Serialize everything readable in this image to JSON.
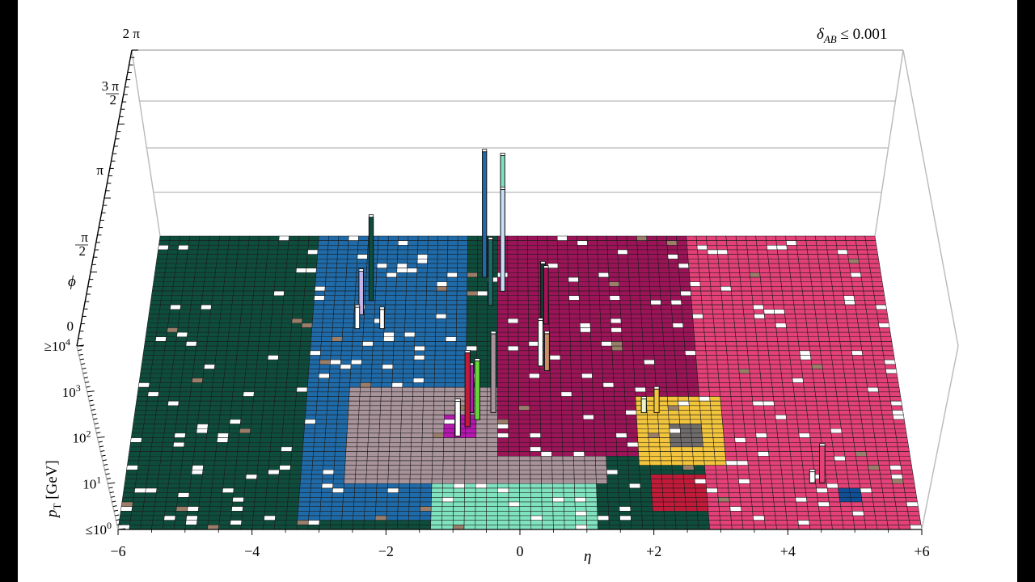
{
  "chart_data": {
    "type": "heatmap",
    "subtype": "3d-lego-calorimeter",
    "title": "",
    "annotation": {
      "main": "δ",
      "sub": "AB",
      "tail": " ≤ 0.001"
    },
    "x_axis": {
      "label": "η",
      "range": [
        -6,
        6
      ],
      "tick_labels": [
        "−6",
        "−4",
        "−2",
        "0",
        "+2",
        "+4",
        "+6"
      ],
      "tick_values": [
        -6,
        -4,
        -2,
        0,
        2,
        4,
        6
      ]
    },
    "phi_axis": {
      "label": "ϕ",
      "range": [
        0,
        6.2832
      ],
      "tick_labels": [
        {
          "kind": "text",
          "text": "0"
        },
        {
          "kind": "frac",
          "num": "π",
          "den": "2"
        },
        {
          "kind": "text",
          "text": "π"
        },
        {
          "kind": "frac",
          "num": "3 π",
          "den": "2"
        },
        {
          "kind": "text",
          "text": "2 π"
        }
      ],
      "tick_values": [
        0,
        1.5708,
        3.1416,
        4.7124,
        6.2832
      ]
    },
    "pt_axis": {
      "label": "p",
      "label_sub": "T",
      "label_unit": " [GeV]",
      "scale": "log",
      "range_exponent": [
        0,
        4
      ],
      "tick_labels": [
        {
          "prefix": "≤10",
          "exp": "0"
        },
        {
          "prefix": "10",
          "exp": "1"
        },
        {
          "prefix": "10",
          "exp": "2"
        },
        {
          "prefix": "10",
          "exp": "3"
        },
        {
          "prefix": "≥10",
          "exp": "4"
        }
      ],
      "tick_exponents": [
        0,
        1,
        2,
        3,
        4
      ]
    },
    "grid": {
      "eta_cells": 72,
      "phi_cells": 64
    },
    "regions": [
      {
        "name": "dark-green-left",
        "color": "#0e4d3c",
        "eta_range": [
          -6,
          -2.2
        ],
        "phi_range": [
          0,
          6.2832
        ]
      },
      {
        "name": "blue",
        "color": "#1f6aa8",
        "eta_range": [
          -3.4,
          -0.8
        ],
        "phi_range": [
          0.2,
          6.2832
        ]
      },
      {
        "name": "grey-center",
        "color": "#a8939b",
        "eta_range": [
          -2.6,
          1.3
        ],
        "phi_range": [
          1.0,
          3.0
        ]
      },
      {
        "name": "aqua-bottom",
        "color": "#7fe3c0",
        "eta_range": [
          -1.3,
          1.2
        ],
        "phi_range": [
          0,
          1.0
        ]
      },
      {
        "name": "aqua-top",
        "color": "#7fe3c0",
        "eta_range": [
          0,
          1.3
        ],
        "phi_range": [
          5.5,
          6.2832
        ]
      },
      {
        "name": "maroon",
        "color": "#9c1458",
        "eta_range": [
          -0.4,
          2.8
        ],
        "phi_range": [
          1.6,
          6.2832
        ]
      },
      {
        "name": "pink-right",
        "color": "#e34177",
        "eta_range": [
          2.8,
          6
        ],
        "phi_range": [
          0,
          6.2832
        ]
      },
      {
        "name": "yellow-ring",
        "color": "#f2c53d",
        "eta_range": [
          1.8,
          3.2
        ],
        "phi_range": [
          1.4,
          2.8
        ]
      },
      {
        "name": "grey-in-yellow",
        "color": "#6f6b6b",
        "eta_range": [
          2.3,
          2.8
        ],
        "phi_range": [
          1.8,
          2.3
        ]
      },
      {
        "name": "crimson",
        "color": "#c21b3a",
        "eta_range": [
          2.0,
          2.8
        ],
        "phi_range": [
          0.4,
          1.2
        ]
      },
      {
        "name": "magenta-blob",
        "color": "#b517b0",
        "eta_range": [
          -1.1,
          -0.7
        ],
        "phi_range": [
          2.0,
          2.5
        ]
      },
      {
        "name": "navy-blob",
        "color": "#0f4f98",
        "eta_range": [
          4.8,
          5.2
        ],
        "phi_range": [
          0.6,
          0.9
        ]
      }
    ],
    "towers": [
      {
        "eta": -2.4,
        "phi": 4.9,
        "color": "#0e4d3c",
        "pt_log": 1.9
      },
      {
        "eta": -2.55,
        "phi": 4.6,
        "color": "#c8b4e6",
        "pt_log": 1.0
      },
      {
        "eta": -2.6,
        "phi": 4.3,
        "color": "#ffffff",
        "pt_log": 0.5
      },
      {
        "eta": -2.2,
        "phi": 4.3,
        "color": "#ffffff",
        "pt_log": 0.45
      },
      {
        "eta": -0.55,
        "phi": 5.4,
        "color": "#1f6aa8",
        "pt_log": 2.8
      },
      {
        "eta": -0.25,
        "phi": 5.5,
        "color": "#7fe3c0",
        "pt_log": 2.6
      },
      {
        "eta": -0.25,
        "phi": 5.1,
        "color": "#c6def6",
        "pt_log": 2.3
      },
      {
        "eta": -0.45,
        "phi": 4.8,
        "color": "#1b6b6b",
        "pt_log": 1.5
      },
      {
        "eta": 0.4,
        "phi": 4.4,
        "color": "#123d34",
        "pt_log": 1.4
      },
      {
        "eta": 0.45,
        "phi": 4.4,
        "color": "#a51257",
        "pt_log": 1.3
      },
      {
        "eta": 0.35,
        "phi": 3.5,
        "color": "#ffffff",
        "pt_log": 1.1
      },
      {
        "eta": 0.45,
        "phi": 3.4,
        "color": "#c8906a",
        "pt_log": 0.9
      },
      {
        "eta": -0.75,
        "phi": 2.5,
        "color": "#b517b0",
        "pt_log": 1.2
      },
      {
        "eta": -0.8,
        "phi": 2.2,
        "color": "#c21b3a",
        "pt_log": 1.9
      },
      {
        "eta": -0.65,
        "phi": 2.35,
        "color": "#66d43a",
        "pt_log": 1.5
      },
      {
        "eta": -0.4,
        "phi": 2.5,
        "color": "#a8939b",
        "pt_log": 2.0
      },
      {
        "eta": -0.95,
        "phi": 2.0,
        "color": "#ffffff",
        "pt_log": 0.9
      },
      {
        "eta": 1.95,
        "phi": 2.5,
        "color": "#e8f2c8",
        "pt_log": 0.35
      },
      {
        "eta": 2.15,
        "phi": 2.5,
        "color": "#f2c53d",
        "pt_log": 0.6
      },
      {
        "eta": 4.6,
        "phi": 1.0,
        "color": "#e34177",
        "pt_log": 1.0
      },
      {
        "eta": 4.45,
        "phi": 1.0,
        "color": "#ffffff",
        "pt_log": 0.3
      }
    ]
  }
}
